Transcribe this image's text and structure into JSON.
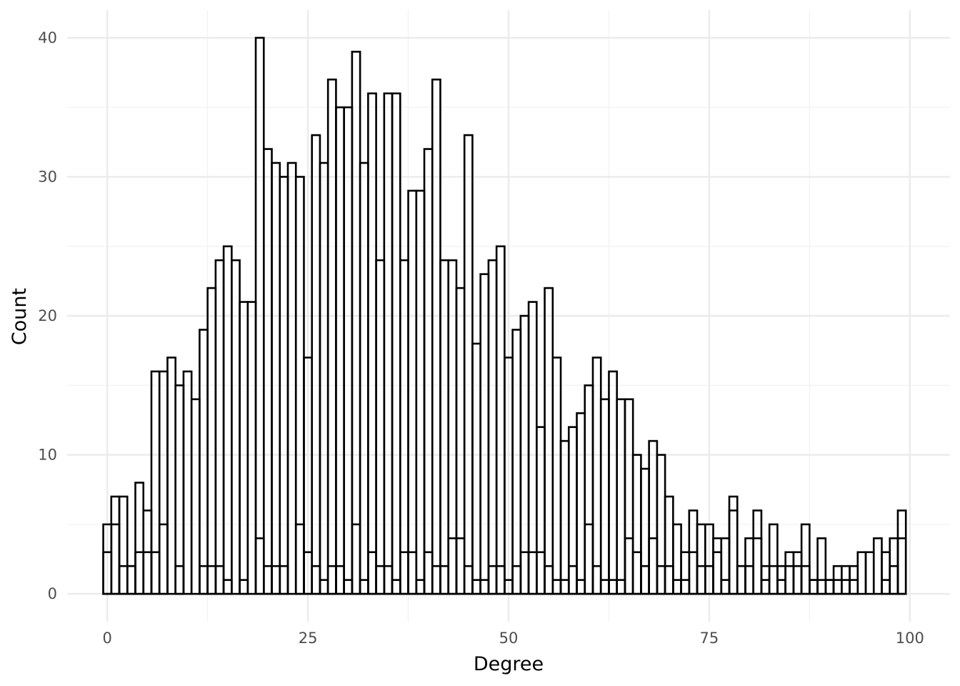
{
  "chart_data": {
    "type": "bar",
    "xlabel": "Degree",
    "ylabel": "Count",
    "xlim": [
      -5,
      105
    ],
    "ylim": [
      -2,
      42
    ],
    "x_ticks": [
      0,
      25,
      50,
      75,
      100
    ],
    "y_ticks": [
      0,
      10,
      20,
      30,
      40
    ],
    "grid": true,
    "bin_width": 1,
    "x": [
      0,
      1,
      2,
      3,
      4,
      5,
      6,
      7,
      8,
      9,
      10,
      11,
      12,
      13,
      14,
      15,
      16,
      17,
      18,
      19,
      20,
      21,
      22,
      23,
      24,
      25,
      26,
      27,
      28,
      29,
      30,
      31,
      32,
      33,
      34,
      35,
      36,
      37,
      38,
      39,
      40,
      41,
      42,
      43,
      44,
      45,
      46,
      47,
      48,
      49,
      50,
      51,
      52,
      53,
      54,
      55,
      56,
      57,
      58,
      59,
      60,
      61,
      62,
      63,
      64,
      65,
      66,
      67,
      68,
      69,
      70,
      71,
      72,
      73,
      74,
      75,
      76,
      77,
      78,
      79,
      80,
      81,
      82,
      83,
      84,
      85,
      86,
      87,
      88,
      89,
      90,
      91,
      92,
      93,
      94,
      95,
      96,
      97,
      98,
      99
    ],
    "series": [
      {
        "values": [
          5,
          7,
          7,
          2,
          8,
          6,
          16,
          16,
          17,
          15,
          16,
          14,
          19,
          22,
          24,
          25,
          24,
          21,
          21,
          40,
          32,
          31,
          30,
          31,
          30,
          17,
          33,
          31,
          37,
          35,
          35,
          39,
          31,
          36,
          24,
          36,
          36,
          24,
          29,
          29,
          32,
          37,
          24,
          24,
          22,
          33,
          18,
          23,
          24,
          25,
          17,
          19,
          20,
          21,
          12,
          22,
          17,
          11,
          12,
          13,
          15,
          17,
          14,
          16,
          14,
          14,
          10,
          9,
          11,
          10,
          7,
          5,
          3,
          6,
          5,
          5,
          4,
          4,
          7,
          2,
          4,
          6,
          2,
          5,
          2,
          3,
          3,
          5,
          1,
          4,
          1,
          2,
          2,
          2,
          3,
          3,
          4,
          3,
          4,
          6
        ]
      },
      {
        "values": [
          3,
          5,
          2,
          2,
          3,
          3,
          3,
          5,
          0,
          2,
          0,
          0,
          2,
          2,
          2,
          1,
          0,
          1,
          0,
          4,
          2,
          2,
          2,
          0,
          5,
          3,
          2,
          1,
          2,
          2,
          1,
          5,
          1,
          3,
          2,
          2,
          1,
          3,
          3,
          1,
          3,
          2,
          2,
          4,
          4,
          2,
          1,
          1,
          2,
          2,
          1,
          2,
          3,
          3,
          3,
          2,
          1,
          1,
          2,
          1,
          5,
          2,
          1,
          1,
          1,
          4,
          3,
          2,
          4,
          2,
          2,
          1,
          1,
          3,
          2,
          2,
          3,
          1,
          6,
          2,
          2,
          4,
          1,
          2,
          1,
          2,
          2,
          2,
          1,
          1,
          1,
          1,
          1,
          1,
          0,
          0,
          0,
          1,
          2,
          4
        ]
      }
    ]
  }
}
